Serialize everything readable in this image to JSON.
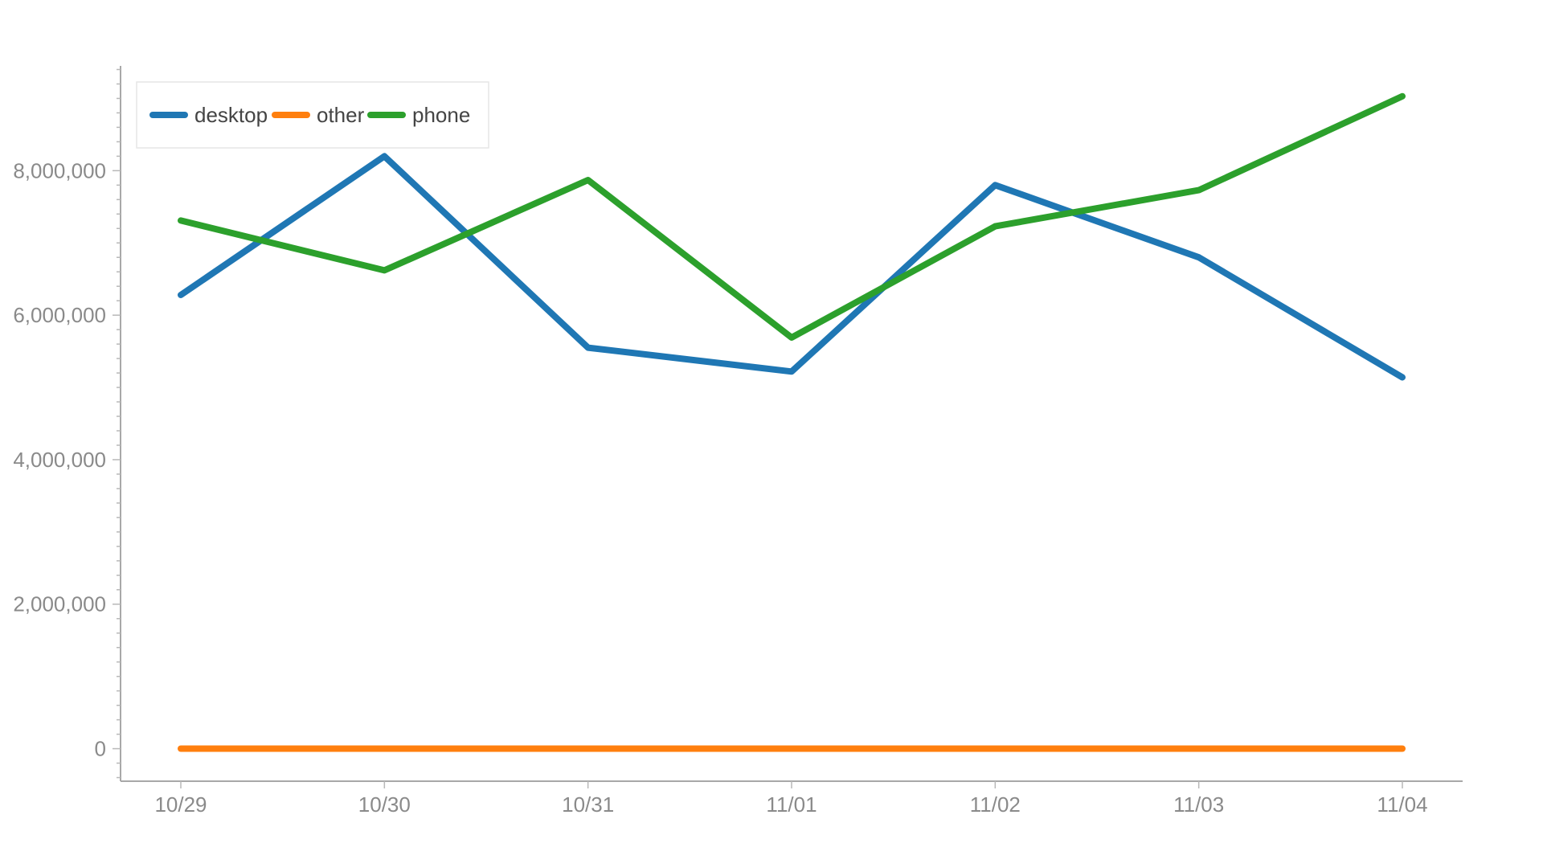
{
  "chart_data": {
    "type": "line",
    "title": "",
    "xlabel": "",
    "ylabel": "",
    "categories": [
      "10/29",
      "10/30",
      "10/31",
      "11/01",
      "11/02",
      "11/03",
      "11/04"
    ],
    "ylim": [
      -450000,
      9450000
    ],
    "yticks": [
      0,
      2000000,
      4000000,
      6000000,
      8000000
    ],
    "ytick_labels": [
      "0",
      "2,000,000",
      "4,000,000",
      "6,000,000",
      "8,000,000"
    ],
    "grid": false,
    "legend_position": "top-left",
    "series": [
      {
        "name": "desktop",
        "color": "#1f77b4",
        "values": [
          6280000,
          8200000,
          5550000,
          5220000,
          7800000,
          6800000,
          5140000
        ]
      },
      {
        "name": "other",
        "color": "#ff7f0e",
        "values": [
          0,
          0,
          0,
          0,
          0,
          0,
          0
        ]
      },
      {
        "name": "phone",
        "color": "#2ca02c",
        "values": [
          7310000,
          6620000,
          7870000,
          5690000,
          7230000,
          7730000,
          9030000
        ]
      }
    ]
  }
}
